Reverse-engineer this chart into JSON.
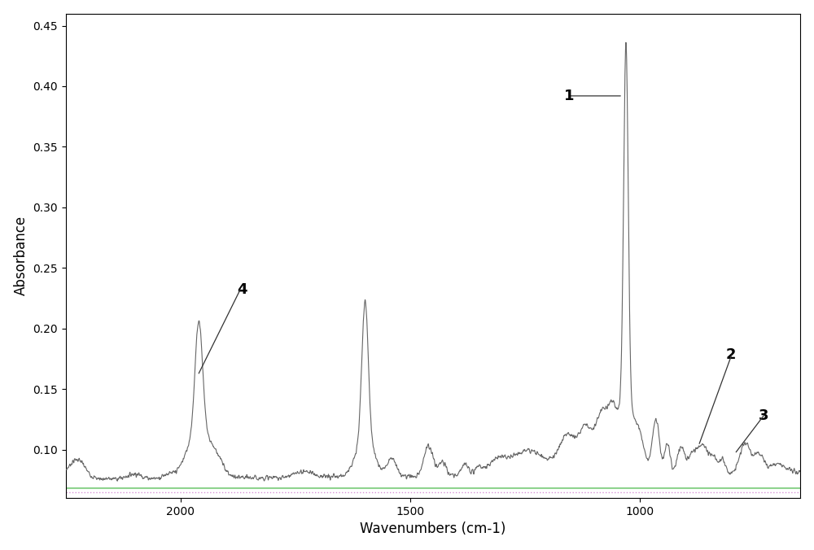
{
  "title": "",
  "xlabel": "Wavenumbers (cm-1)",
  "ylabel": "Absorbance",
  "xlim": [
    2250,
    650
  ],
  "ylim": [
    0.06,
    0.46
  ],
  "yticks": [
    0.1,
    0.15,
    0.2,
    0.25,
    0.3,
    0.35,
    0.4,
    0.45
  ],
  "xticks": [
    2000,
    1500,
    1000
  ],
  "background_color": "#ffffff",
  "line_color": "#666666",
  "baseline_y": 0.075,
  "noise_level": 0.002,
  "green_line_y": 0.068,
  "pink_line_y": 0.065
}
